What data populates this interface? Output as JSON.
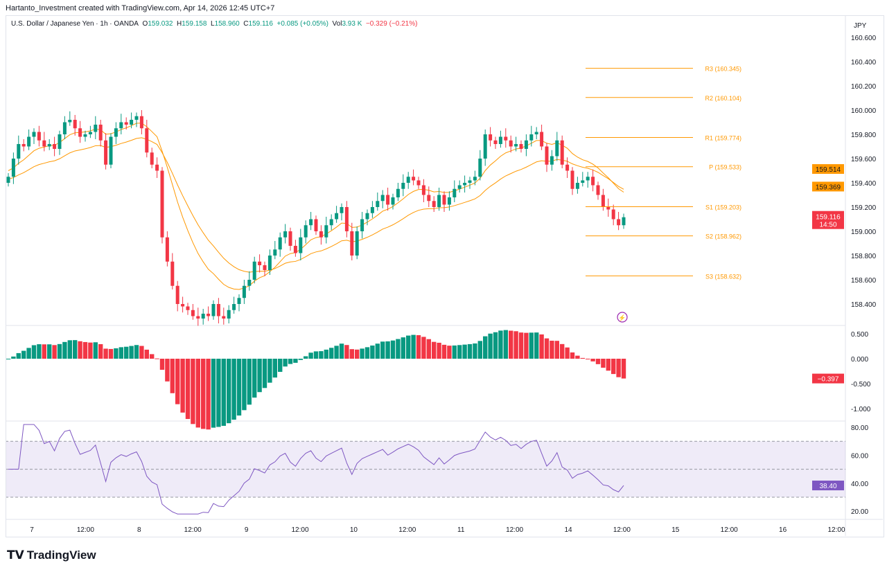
{
  "credit": "Hartanto_Investment created with TradingView.com, Apr 14, 2026 12:45 UTC+7",
  "legend": {
    "symbol": "U.S. Dollar / Japanese Yen · 1h · OANDA",
    "o_label": "O",
    "o": "159.032",
    "h_label": "H",
    "h": "159.158",
    "l_label": "L",
    "l": "158.960",
    "c_label": "C",
    "c": "159.116",
    "change": "+0.085 (+0.05%)",
    "vol_label": "Vol",
    "vol": "3.93 K",
    "vol_change": "−0.329 (−0.21%)"
  },
  "logo": "TradingView",
  "colors": {
    "up": "#089981",
    "down": "#f23645",
    "ema": "#ff9800",
    "rsi": "#7e57c2",
    "pivot": "#ff9800"
  },
  "chart_data": [
    {
      "type": "candlestick",
      "currency": "JPY",
      "ylim": [
        158.3,
        160.65
      ],
      "price_ticks": [
        "160.600",
        "160.400",
        "160.200",
        "160.000",
        "159.800",
        "159.600",
        "159.400",
        "159.200",
        "159.000",
        "158.800",
        "158.600",
        "158.400"
      ],
      "time_labels": [
        "7",
        "12:00",
        "8",
        "12:00",
        "9",
        "12:00",
        "10",
        "12:00",
        "11",
        "12:00",
        "14",
        "12:00",
        "15",
        "12:00",
        "16",
        "12:00"
      ],
      "closes": [
        159.45,
        159.6,
        159.72,
        159.7,
        159.78,
        159.82,
        159.75,
        159.7,
        159.72,
        159.68,
        159.8,
        159.9,
        159.92,
        159.85,
        159.78,
        159.8,
        159.82,
        159.88,
        159.75,
        159.55,
        159.78,
        159.85,
        159.9,
        159.88,
        159.92,
        159.95,
        159.85,
        159.65,
        159.55,
        159.5,
        158.95,
        158.75,
        158.55,
        158.4,
        158.38,
        158.35,
        158.3,
        158.28,
        158.32,
        158.3,
        158.4,
        158.3,
        158.28,
        158.35,
        158.4,
        158.45,
        158.55,
        158.6,
        158.75,
        158.72,
        158.68,
        158.8,
        158.85,
        158.95,
        159.0,
        158.88,
        158.82,
        158.95,
        159.05,
        159.1,
        159.0,
        158.95,
        159.05,
        159.1,
        159.15,
        159.2,
        159.0,
        158.8,
        159.0,
        159.1,
        159.15,
        159.2,
        159.25,
        159.3,
        159.22,
        159.28,
        159.35,
        159.4,
        159.45,
        159.42,
        159.38,
        159.3,
        159.25,
        159.2,
        159.3,
        159.22,
        159.28,
        159.35,
        159.38,
        159.4,
        159.42,
        159.45,
        159.6,
        159.8,
        159.75,
        159.72,
        159.78,
        159.75,
        159.7,
        159.72,
        159.68,
        159.75,
        159.8,
        159.82,
        159.7,
        159.55,
        159.62,
        159.75,
        159.55,
        159.5,
        159.35,
        159.4,
        159.42,
        159.45,
        159.38,
        159.3,
        159.2,
        159.18,
        159.1,
        159.05,
        159.116
      ],
      "pivots": [
        {
          "label": "R3 (160.345)",
          "value": 160.345
        },
        {
          "label": "R2 (160.104)",
          "value": 160.104
        },
        {
          "label": "R1 (159.774)",
          "value": 159.774
        },
        {
          "label": "P (159.533)",
          "value": 159.533
        },
        {
          "label": "S1 (159.203)",
          "value": 159.203
        },
        {
          "label": "S2 (158.962)",
          "value": 158.962
        },
        {
          "label": "S3 (158.632)",
          "value": 158.632
        }
      ],
      "price_badges": [
        {
          "text": "159.514",
          "value": 159.514,
          "color": "#ff9800"
        },
        {
          "text": "159.369",
          "value": 159.369,
          "color": "#ff9800"
        }
      ],
      "last_price": {
        "text": "159.116",
        "countdown": "14:50",
        "value": 159.116
      }
    },
    {
      "type": "bar",
      "name": "MACD histogram",
      "ylim": [
        -1.1,
        0.6
      ],
      "ticks": [
        "0.500",
        "0.000",
        "-0.500",
        "-1.000"
      ],
      "last": "−0.397",
      "last_value": -0.397
    },
    {
      "type": "line",
      "name": "RSI",
      "ylim": [
        15,
        85
      ],
      "ticks": [
        "80.00",
        "60.00",
        "40.00",
        "20.00"
      ],
      "band": [
        30,
        70
      ],
      "last": "38.40",
      "last_value": 38.4
    }
  ]
}
